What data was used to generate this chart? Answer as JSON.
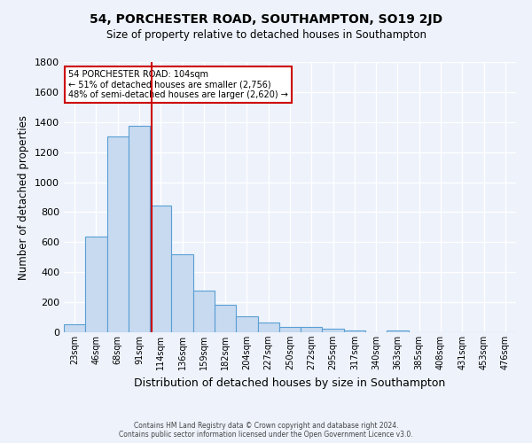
{
  "title": "54, PORCHESTER ROAD, SOUTHAMPTON, SO19 2JD",
  "subtitle": "Size of property relative to detached houses in Southampton",
  "xlabel": "Distribution of detached houses by size in Southampton",
  "ylabel": "Number of detached properties",
  "categories": [
    "23sqm",
    "46sqm",
    "68sqm",
    "91sqm",
    "114sqm",
    "136sqm",
    "159sqm",
    "182sqm",
    "204sqm",
    "227sqm",
    "250sqm",
    "272sqm",
    "295sqm",
    "317sqm",
    "340sqm",
    "363sqm",
    "385sqm",
    "408sqm",
    "431sqm",
    "453sqm",
    "476sqm"
  ],
  "values": [
    55,
    640,
    1305,
    1375,
    845,
    520,
    278,
    185,
    105,
    65,
    38,
    35,
    25,
    12,
    0,
    10,
    0,
    0,
    0,
    0,
    0
  ],
  "bar_color": "#c8daf0",
  "bar_edge_color": "#5a9fd4",
  "background_color": "#edf2fb",
  "grid_color": "#ffffff",
  "marker_line_color": "#cc0000",
  "annotation_text": "54 PORCHESTER ROAD: 104sqm\n← 51% of detached houses are smaller (2,756)\n48% of semi-detached houses are larger (2,620) →",
  "annotation_box_color": "#ffffff",
  "annotation_box_edge": "#cc0000",
  "footer": "Contains HM Land Registry data © Crown copyright and database right 2024.\nContains public sector information licensed under the Open Government Licence v3.0.",
  "ylim": [
    0,
    1800
  ],
  "title_fontsize": 10,
  "subtitle_fontsize": 8.5,
  "xlabel_fontsize": 9,
  "ylabel_fontsize": 8.5
}
